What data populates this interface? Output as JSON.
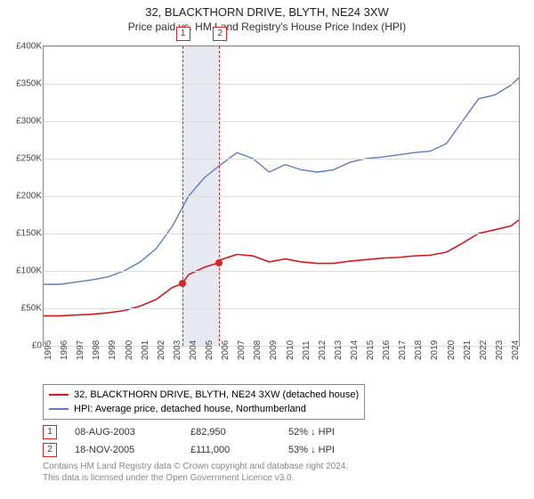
{
  "title": "32, BLACKTHORN DRIVE, BLYTH, NE24 3XW",
  "subtitle": "Price paid vs. HM Land Registry's House Price Index (HPI)",
  "chart": {
    "type": "line",
    "ylim": [
      0,
      400000
    ],
    "ytick_step": 50000,
    "y_ticks": [
      "£0",
      "£50K",
      "£100K",
      "£150K",
      "£200K",
      "£250K",
      "£300K",
      "£350K",
      "£400K"
    ],
    "x_years": [
      1995,
      1996,
      1997,
      1998,
      1999,
      2000,
      2001,
      2002,
      2003,
      2004,
      2005,
      2006,
      2007,
      2008,
      2009,
      2010,
      2011,
      2012,
      2013,
      2014,
      2015,
      2016,
      2017,
      2018,
      2019,
      2020,
      2021,
      2022,
      2023,
      2024
    ],
    "xlim": [
      1995,
      2024.5
    ],
    "highlight_band": [
      2003.6,
      2005.9
    ],
    "background_color": "#ffffff",
    "grid_color": "#dddddd",
    "border_color": "#888888",
    "series": [
      {
        "name": "32, BLACKTHORN DRIVE, BLYTH, NE24 3XW (detached house)",
        "color": "#d61a1a",
        "width": 1.6,
        "points": [
          [
            1995,
            40000
          ],
          [
            1996,
            40000
          ],
          [
            1997,
            41000
          ],
          [
            1998,
            42000
          ],
          [
            1999,
            44000
          ],
          [
            2000,
            47000
          ],
          [
            2001,
            53000
          ],
          [
            2002,
            62000
          ],
          [
            2003,
            78000
          ],
          [
            2003.6,
            82950
          ],
          [
            2004,
            95000
          ],
          [
            2005,
            105000
          ],
          [
            2005.9,
            111000
          ],
          [
            2006,
            115000
          ],
          [
            2007,
            122000
          ],
          [
            2008,
            120000
          ],
          [
            2009,
            112000
          ],
          [
            2010,
            116000
          ],
          [
            2011,
            112000
          ],
          [
            2012,
            110000
          ],
          [
            2013,
            110000
          ],
          [
            2014,
            113000
          ],
          [
            2015,
            115000
          ],
          [
            2016,
            117000
          ],
          [
            2017,
            118000
          ],
          [
            2018,
            120000
          ],
          [
            2019,
            121000
          ],
          [
            2020,
            125000
          ],
          [
            2021,
            137000
          ],
          [
            2022,
            150000
          ],
          [
            2023,
            155000
          ],
          [
            2024,
            160000
          ],
          [
            2024.5,
            168000
          ]
        ]
      },
      {
        "name": "HPI: Average price, detached house, Northumberland",
        "color": "#5b7dc4",
        "width": 1.4,
        "points": [
          [
            1995,
            82000
          ],
          [
            1996,
            82000
          ],
          [
            1997,
            85000
          ],
          [
            1998,
            88000
          ],
          [
            1999,
            92000
          ],
          [
            2000,
            100000
          ],
          [
            2001,
            112000
          ],
          [
            2002,
            130000
          ],
          [
            2003,
            160000
          ],
          [
            2004,
            200000
          ],
          [
            2005,
            225000
          ],
          [
            2006,
            242000
          ],
          [
            2007,
            258000
          ],
          [
            2008,
            250000
          ],
          [
            2009,
            232000
          ],
          [
            2010,
            242000
          ],
          [
            2011,
            235000
          ],
          [
            2012,
            232000
          ],
          [
            2013,
            235000
          ],
          [
            2014,
            245000
          ],
          [
            2015,
            250000
          ],
          [
            2016,
            252000
          ],
          [
            2017,
            255000
          ],
          [
            2018,
            258000
          ],
          [
            2019,
            260000
          ],
          [
            2020,
            270000
          ],
          [
            2021,
            300000
          ],
          [
            2022,
            330000
          ],
          [
            2023,
            335000
          ],
          [
            2024,
            348000
          ],
          [
            2024.5,
            358000
          ]
        ]
      }
    ],
    "markers": [
      {
        "label": "1",
        "x": 2003.6,
        "y": 82950
      },
      {
        "label": "2",
        "x": 2005.9,
        "y": 111000
      }
    ]
  },
  "legend": [
    {
      "color": "#d61a1a",
      "label": "32, BLACKTHORN DRIVE, BLYTH, NE24 3XW (detached house)"
    },
    {
      "color": "#5b7dc4",
      "label": "HPI: Average price, detached house, Northumberland"
    }
  ],
  "facts": [
    {
      "n": "1",
      "date": "08-AUG-2003",
      "price": "£82,950",
      "delta": "52% ↓ HPI"
    },
    {
      "n": "2",
      "date": "18-NOV-2005",
      "price": "£111,000",
      "delta": "53% ↓ HPI"
    }
  ],
  "footnote_l1": "Contains HM Land Registry data © Crown copyright and database right 2024.",
  "footnote_l2": "This data is licensed under the Open Government Licence v3.0."
}
